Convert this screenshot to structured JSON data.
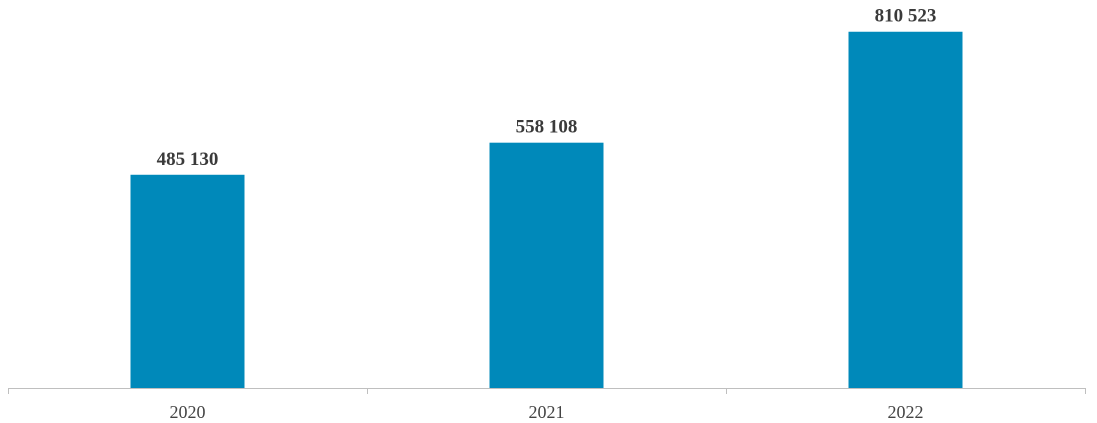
{
  "chart_data": {
    "type": "bar",
    "categories": [
      "2020",
      "2021",
      "2022"
    ],
    "values": [
      485130,
      558108,
      810523
    ],
    "value_labels": [
      "485 130",
      "558 108",
      "810 523"
    ],
    "title": "",
    "xlabel": "",
    "ylabel": "",
    "ylim": [
      0,
      860000
    ],
    "grid": false,
    "legend": "none",
    "colors": {
      "bar": "#0089BA",
      "axis": "#bfbfbf"
    }
  }
}
